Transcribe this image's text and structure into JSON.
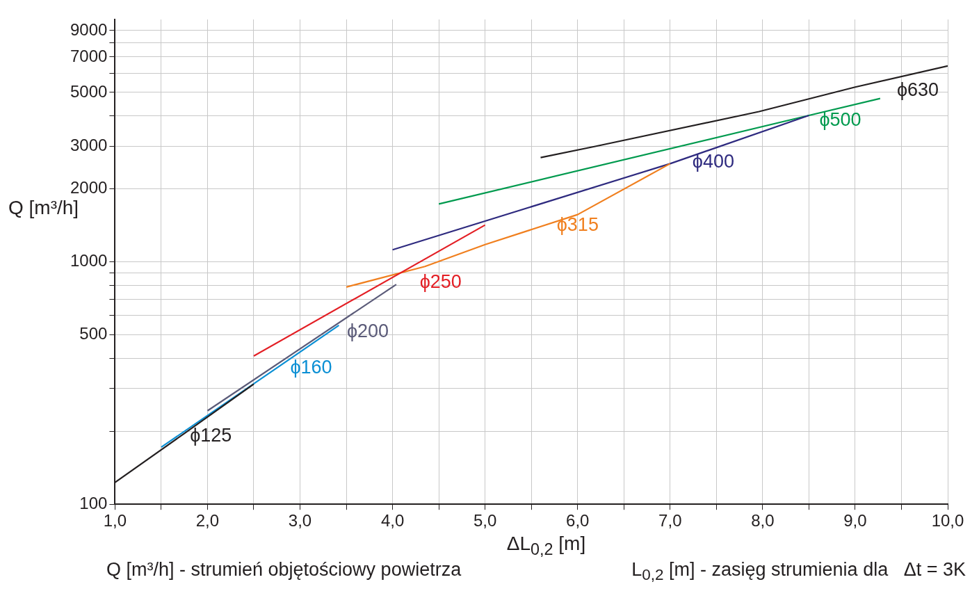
{
  "chart_data": {
    "type": "line",
    "xlabel": "ΔL$_{0,2}$ [m]",
    "ylabel": "Q [m³/h]",
    "log": "y",
    "grid": true,
    "legend": false,
    "marker": "none",
    "line_style": "solid",
    "xlim": [
      1,
      10
    ],
    "xticks": [
      {
        "value": 1,
        "label": "1,0"
      },
      {
        "value": 1.5,
        "label": null
      },
      {
        "value": 2,
        "label": "2,0"
      },
      {
        "value": 2.5,
        "label": null
      },
      {
        "value": 3,
        "label": "3,0"
      },
      {
        "value": 3.5,
        "label": null
      },
      {
        "value": 4,
        "label": "4,0"
      },
      {
        "value": 4.5,
        "label": null
      },
      {
        "value": 5,
        "label": "5,0"
      },
      {
        "value": 5.5,
        "label": null
      },
      {
        "value": 6,
        "label": "6,0"
      },
      {
        "value": 6.5,
        "label": null
      },
      {
        "value": 7,
        "label": "7,0"
      },
      {
        "value": 7.5,
        "label": null
      },
      {
        "value": 8,
        "label": "8,0"
      },
      {
        "value": 8.5,
        "label": null
      },
      {
        "value": 9,
        "label": "9,0"
      },
      {
        "value": 9.5,
        "label": null
      },
      {
        "value": 10,
        "label": "10,0"
      }
    ],
    "ylim": [
      100,
      10000
    ],
    "yticks": [
      100,
      {
        "value": 200,
        "label": null
      },
      {
        "value": 300,
        "label": null
      },
      {
        "value": 400,
        "label": null
      },
      500,
      {
        "value": 600,
        "label": null
      },
      {
        "value": 700,
        "label": null
      },
      {
        "value": 800,
        "label": null
      },
      {
        "value": 900,
        "label": null
      },
      1000,
      2000,
      3000,
      {
        "value": 4000,
        "label": null
      },
      5000,
      {
        "value": 6000,
        "label": null
      },
      7000,
      {
        "value": 8000,
        "label": null
      },
      9000
    ],
    "series": [
      {
        "name": "ϕ125",
        "color": "#231f20",
        "x": [
          1.0,
          1.75,
          2.5
        ],
        "values": [
          123,
          196,
          313
        ]
      },
      {
        "name": "ϕ160",
        "color": "#0a8fd4",
        "x": [
          1.5,
          3.42
        ],
        "values": [
          172,
          547
        ]
      },
      {
        "name": "ϕ200",
        "color": "#5a5a78",
        "x": [
          2.0,
          4.04
        ],
        "values": [
          243,
          807
        ]
      },
      {
        "name": "ϕ250",
        "color": "#e31e24",
        "x": [
          2.5,
          5.0
        ],
        "values": [
          409,
          1419
        ]
      },
      {
        "name": "ϕ315",
        "color": "#f07f1e",
        "x": [
          3.5,
          4.35,
          5.0,
          6.0,
          7.0
        ],
        "values": [
          787,
          957,
          1178,
          1567,
          2542
        ]
      },
      {
        "name": "ϕ400",
        "color": "#2e2a7f",
        "x": [
          4.0,
          7.0,
          8.5
        ],
        "values": [
          1121,
          2542,
          4018
        ]
      },
      {
        "name": "ϕ500",
        "color": "#009a4e",
        "x": [
          4.5,
          8.5,
          9.27
        ],
        "values": [
          1733,
          4018,
          4720
        ]
      },
      {
        "name": "ϕ630",
        "color": "#231f20",
        "x": [
          5.6,
          6.2,
          7.96,
          9.0,
          10.0
        ],
        "values": [
          2692,
          3000,
          4169,
          5260,
          6430
        ]
      }
    ],
    "annotations": [
      "Q [m³/h] - strumień objętościowy powietrza",
      "L$_{0,2}$ [m] - zasięg strumienia dla   Δt = 3K"
    ]
  }
}
